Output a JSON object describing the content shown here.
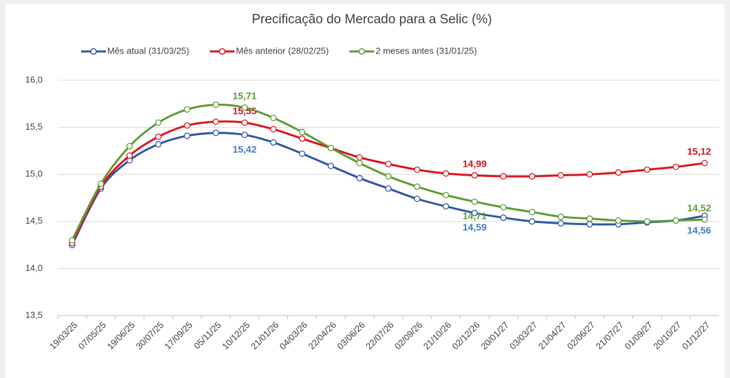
{
  "chart_data": {
    "type": "line",
    "title": "Precificação do Mercado para a Selic (%)",
    "categories": [
      "19/03/25",
      "07/05/25",
      "19/06/25",
      "30/07/25",
      "17/09/25",
      "05/11/25",
      "10/12/25",
      "21/01/26",
      "04/03/26",
      "22/04/26",
      "03/06/26",
      "22/07/26",
      "02/09/26",
      "21/10/26",
      "02/12/26",
      "20/01/27",
      "03/03/27",
      "21/04/27",
      "02/06/27",
      "21/07/27",
      "01/09/27",
      "20/10/27",
      "01/12/27"
    ],
    "series": [
      {
        "name": "Mês atual (31/03/25)",
        "color": "#2f55a4",
        "label_color": "#3b7dc4",
        "values": [
          14.25,
          14.85,
          15.15,
          15.32,
          15.41,
          15.44,
          15.42,
          15.34,
          15.22,
          15.09,
          14.96,
          14.85,
          14.74,
          14.66,
          14.59,
          14.54,
          14.5,
          14.48,
          14.47,
          14.47,
          14.49,
          14.51,
          14.56
        ],
        "value_labels": [
          null,
          null,
          null,
          null,
          null,
          null,
          "15,42",
          null,
          null,
          null,
          null,
          null,
          null,
          null,
          "14,59",
          null,
          null,
          null,
          null,
          null,
          null,
          null,
          "14,56"
        ]
      },
      {
        "name": "Mês anterior (28/02/25)",
        "color": "#d9151b",
        "label_color": "#c8161d",
        "values": [
          14.27,
          14.87,
          15.2,
          15.4,
          15.52,
          15.56,
          15.55,
          15.48,
          15.38,
          15.28,
          15.18,
          15.11,
          15.05,
          15.01,
          14.99,
          14.98,
          14.98,
          14.99,
          15.0,
          15.02,
          15.05,
          15.08,
          15.12
        ],
        "value_labels": [
          null,
          null,
          null,
          null,
          null,
          null,
          "15,55",
          null,
          null,
          null,
          null,
          null,
          null,
          null,
          "14,99",
          null,
          null,
          null,
          null,
          null,
          null,
          null,
          "15,12"
        ]
      },
      {
        "name": "2 meses antes (31/01/25)",
        "color": "#5e9b35",
        "label_color": "#5e9b35",
        "values": [
          14.3,
          14.9,
          15.3,
          15.55,
          15.69,
          15.74,
          15.71,
          15.6,
          15.45,
          15.28,
          15.12,
          14.98,
          14.87,
          14.78,
          14.71,
          14.65,
          14.6,
          14.55,
          14.53,
          14.51,
          14.5,
          14.51,
          14.52
        ],
        "value_labels": [
          null,
          null,
          null,
          null,
          null,
          null,
          "15,71",
          null,
          null,
          null,
          null,
          null,
          null,
          null,
          "14,71",
          null,
          null,
          null,
          null,
          null,
          null,
          null,
          "14,52"
        ]
      }
    ],
    "ylim": [
      13.5,
      16.0
    ],
    "yticks": [
      {
        "value": 13.5,
        "label": "13,5"
      },
      {
        "value": 14.0,
        "label": "14,0"
      },
      {
        "value": 14.5,
        "label": "14,5"
      },
      {
        "value": 15.0,
        "label": "15,0"
      },
      {
        "value": 15.5,
        "label": "15,5"
      },
      {
        "value": 16.0,
        "label": "16,0"
      }
    ],
    "grid": true
  }
}
